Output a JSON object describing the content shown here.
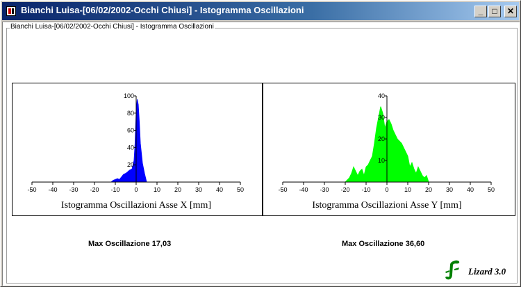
{
  "window": {
    "title": "Bianchi Luisa-[06/02/2002-Occhi Chiusi] - Istogramma Oscillazioni",
    "buttons": {
      "minimize": "_",
      "maximize": "□",
      "close": "✕"
    }
  },
  "group": {
    "title": "Bianchi Luisa-[06/02/2002-Occhi Chiusi] - Istogramma Oscillazioni"
  },
  "chart_data": [
    {
      "type": "area",
      "title": "",
      "xlabel": "Istogramma Oscillazioni Asse X [mm]",
      "ylabel": "",
      "xlim": [
        -50,
        50
      ],
      "ylim": [
        0,
        100
      ],
      "x_ticks": [
        -50,
        -40,
        -30,
        -20,
        -10,
        0,
        10,
        20,
        30,
        40,
        50
      ],
      "y_ticks": [
        20,
        40,
        60,
        80,
        100
      ],
      "grid": false,
      "legend": "none",
      "color": "#0000ff",
      "series": [
        {
          "x": [
            -12,
            -11,
            -10,
            -9,
            -8,
            -7,
            -6,
            -5,
            -4,
            -3,
            -2,
            -1,
            -0.5,
            0,
            0.5,
            1,
            1.5,
            2,
            3,
            4,
            5
          ],
          "values": [
            0,
            2,
            3,
            4,
            3,
            6,
            9,
            10,
            12,
            14,
            15,
            25,
            45,
            80,
            96,
            90,
            70,
            45,
            22,
            10,
            0
          ]
        }
      ]
    },
    {
      "type": "area",
      "title": "",
      "xlabel": "Istogramma Oscillazioni Asse Y [mm]",
      "ylabel": "",
      "xlim": [
        -50,
        50
      ],
      "ylim": [
        0,
        40
      ],
      "x_ticks": [
        -50,
        -40,
        -30,
        -20,
        -10,
        0,
        10,
        20,
        30,
        40,
        50
      ],
      "y_ticks": [
        10,
        20,
        30,
        40
      ],
      "grid": false,
      "legend": "none",
      "color": "#00ff00",
      "series": [
        {
          "x": [
            -20,
            -18,
            -17,
            -16,
            -15,
            -14,
            -13,
            -12,
            -11,
            -10,
            -9,
            -8,
            -7,
            -6,
            -5,
            -4,
            -3,
            -2,
            -1,
            0,
            1,
            2,
            3,
            4,
            5,
            6,
            7,
            8,
            9,
            10,
            11,
            12,
            13,
            14,
            15,
            16,
            17,
            18,
            19,
            20
          ],
          "values": [
            0,
            2,
            4,
            7,
            5,
            3,
            5,
            6,
            3,
            7,
            8,
            10,
            12,
            18,
            25,
            30,
            35,
            32,
            25,
            28,
            29,
            27,
            24,
            22,
            20,
            19,
            18,
            16,
            14,
            12,
            7,
            9,
            6,
            4,
            7,
            5,
            3,
            2,
            3,
            0
          ]
        }
      ]
    }
  ],
  "stats": {
    "max_x": "Max Oscillazione 17,03",
    "max_y": "Max Oscillazione 36,60"
  },
  "logo": {
    "text": "Lizard 3.0",
    "icon": "lizard-icon",
    "color": "#008000"
  }
}
